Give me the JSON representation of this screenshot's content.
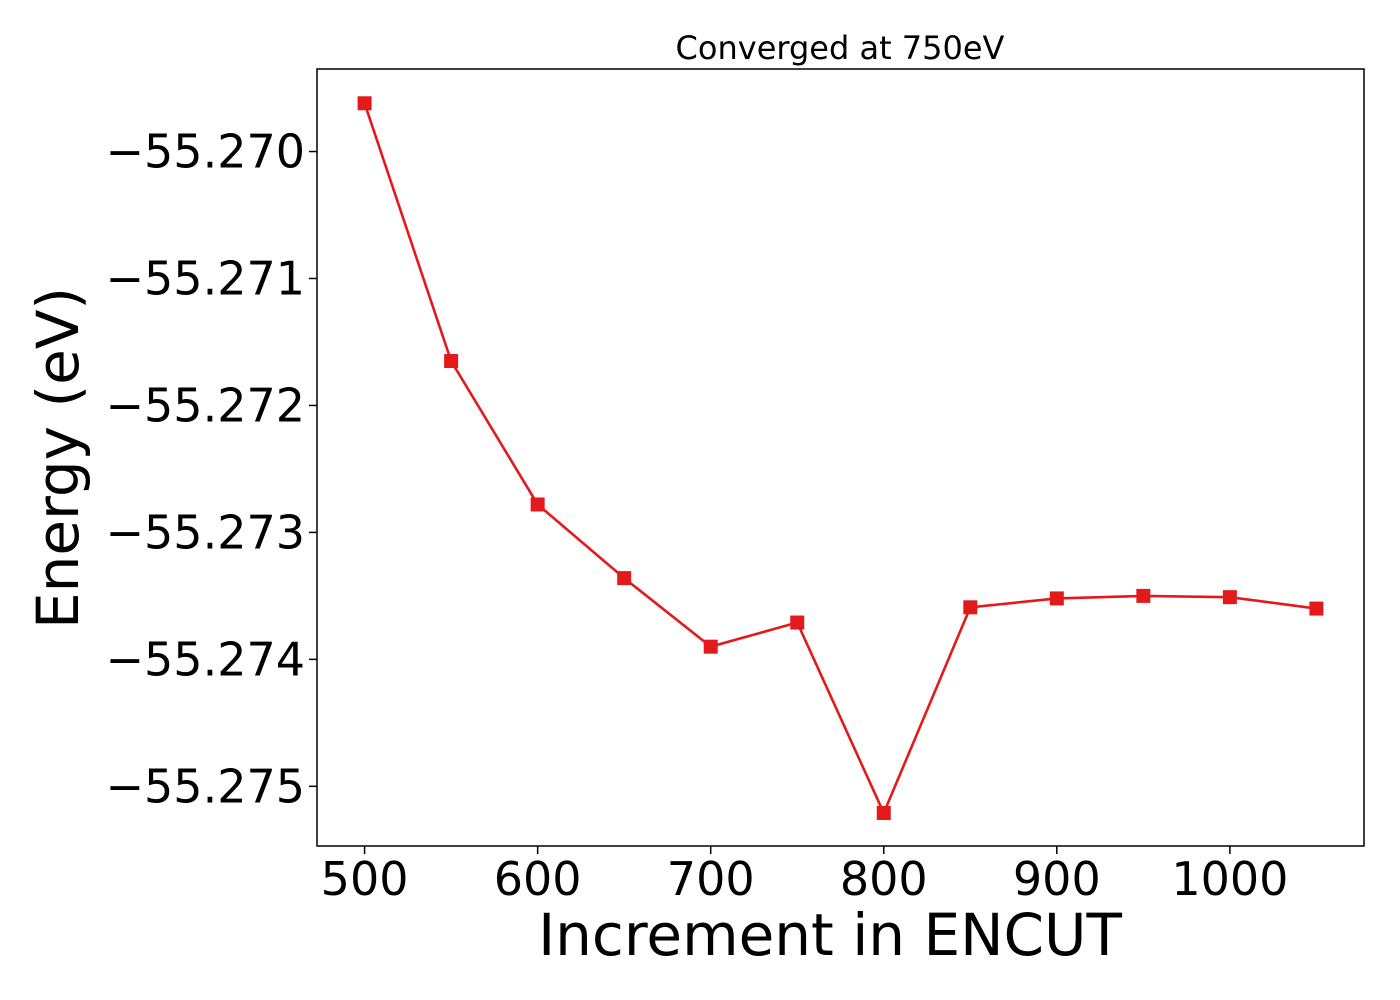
{
  "chart_data": {
    "type": "line",
    "title": "Converged at 750eV",
    "xlabel": "Increment in ENCUT",
    "ylabel": "Energy (eV)",
    "x": [
      500,
      550,
      600,
      650,
      700,
      750,
      800,
      850,
      900,
      950,
      1000,
      1050
    ],
    "series": [
      {
        "values": [
          -55.26962,
          -55.27165,
          -55.27278,
          -55.27336,
          -55.2739,
          -55.27371,
          -55.27521,
          -55.27359,
          -55.27352,
          -55.2735,
          -55.27351,
          -55.2736
        ]
      }
    ],
    "xticks": [
      500,
      600,
      700,
      800,
      900,
      1000
    ],
    "xtick_labels": [
      "500",
      "600",
      "700",
      "800",
      "900",
      "1000"
    ],
    "yticks": [
      -55.27,
      -55.271,
      -55.272,
      -55.273,
      -55.274,
      -55.275
    ],
    "ytick_labels": [
      "−55.270",
      "−55.271",
      "−55.272",
      "−55.273",
      "−55.274",
      "−55.275"
    ],
    "xlim": [
      472.5,
      1077.5
    ],
    "ylim": [
      -55.27547,
      -55.26935
    ],
    "grid": false,
    "line_color": "#e31a1c",
    "marker": "square"
  }
}
